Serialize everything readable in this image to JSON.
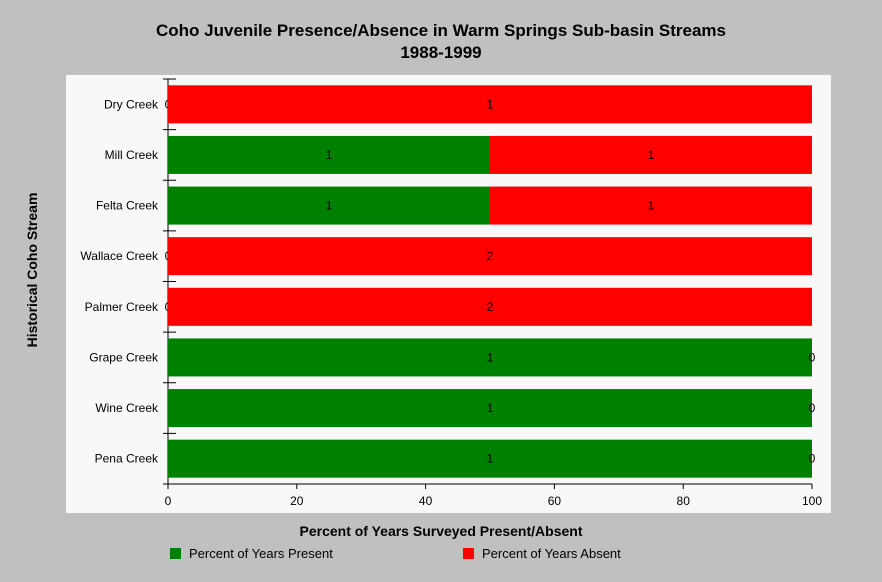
{
  "chart_data": {
    "type": "bar",
    "orientation": "horizontal",
    "stacked": true,
    "title": "Coho Juvenile Presence/Absence in Warm Springs Sub-basin Streams",
    "subtitle": "1988-1999",
    "xlabel": "Percent of Years Surveyed Present/Absent",
    "ylabel": "Historical Coho Stream",
    "xlim": [
      0,
      100
    ],
    "xticks": [
      "0",
      "20",
      "40",
      "60",
      "80",
      "100"
    ],
    "categories": [
      "Dry Creek",
      "Mill Creek",
      "Felta Creek",
      "Wallace Creek",
      "Palmer Creek",
      "Grape Creek",
      "Wine Creek",
      "Pena Creek"
    ],
    "series": [
      {
        "name": "Percent of Years Present",
        "color": "#008000",
        "values": [
          0,
          50,
          50,
          0,
          0,
          100,
          100,
          100
        ],
        "labels": [
          "0",
          "1",
          "1",
          "0",
          "0",
          "1",
          "1",
          "1"
        ]
      },
      {
        "name": "Percent of Years Absent",
        "color": "#ff0000",
        "values": [
          100,
          50,
          50,
          100,
          100,
          0,
          0,
          0
        ],
        "labels": [
          "1",
          "1",
          "1",
          "2",
          "2",
          "0",
          "0",
          "0"
        ]
      }
    ],
    "grid": false,
    "legend_position": "bottom"
  }
}
